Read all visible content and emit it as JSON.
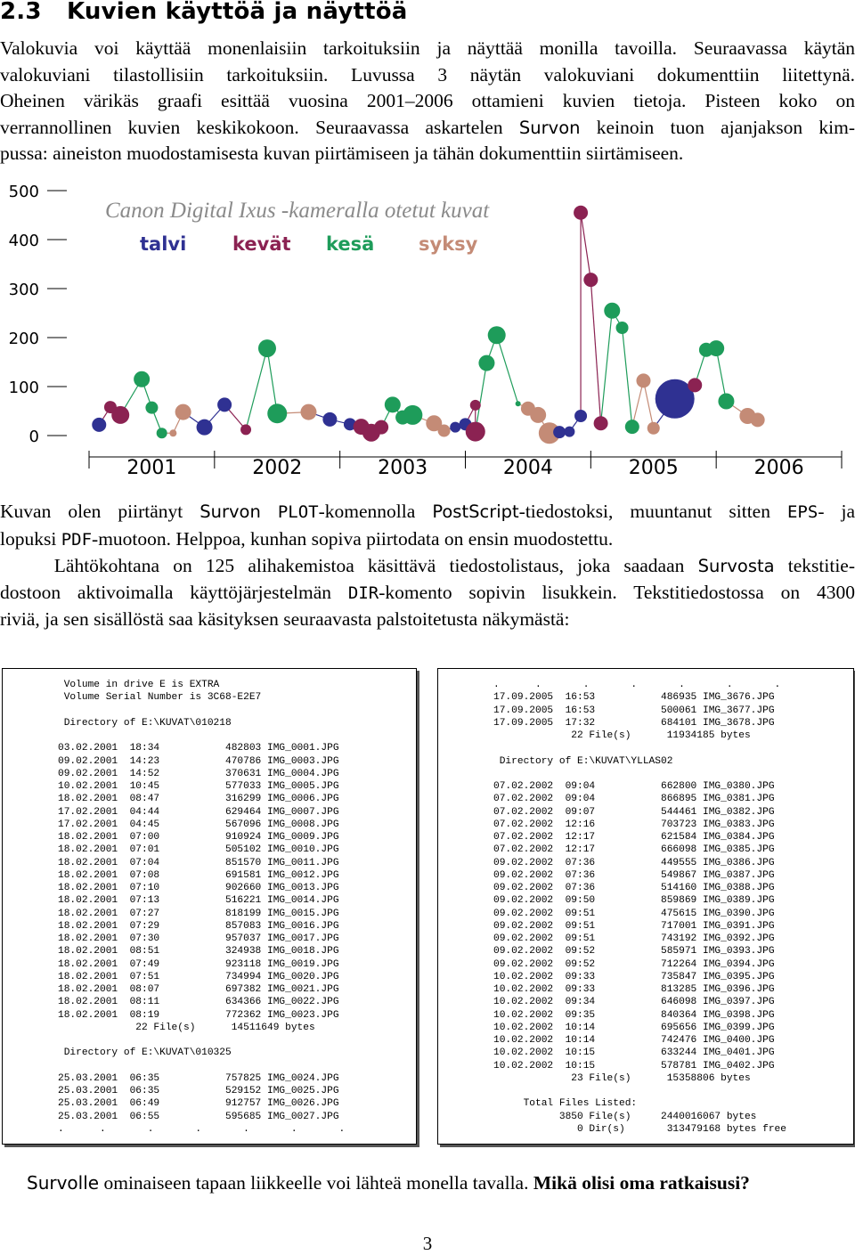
{
  "heading": {
    "number": "2.3",
    "title": "Kuvien käyttöä ja näyttöä"
  },
  "intro": {
    "lines": [
      "Valokuvia voi käyttää monenlaisiin tarkoituksiin ja näyttää monilla tavoilla. Seuraavassa käytän",
      "valokuviani tilastollisiin tarkoituksiin. Luvussa 3 näytän valokuviani dokumenttiin liitettynä.",
      "Oheinen värikäs graafi esittää vuosina 2001–2006 ottamieni kuvien tietoja. Pisteen koko on",
      "verrannollinen kuvien keskikokoon. Seuraavassa askartelen |Survon| keinoin tuon ajanjakson kim-",
      "pussa: aineiston muodostamisesta kuvan piirtämiseen ja tähän dokumenttiin siirtämiseen."
    ]
  },
  "chart_data": {
    "type": "scatter",
    "title": "Canon Digital Ixus -kameralla otetut kuvat",
    "xlabel": "",
    "ylabel": "",
    "ylim": [
      0,
      500
    ],
    "xlim": [
      2001,
      2007
    ],
    "yticks": [
      0,
      100,
      200,
      300,
      400,
      500
    ],
    "xticks": [
      "2001",
      "2002",
      "2003",
      "2004",
      "2005",
      "2006"
    ],
    "grid": false,
    "legend": "top-left",
    "series_note": "point size proportional to mean image size",
    "season_colors": {
      "talvi": "#2f3192",
      "kevät": "#8b2252",
      "kesä": "#1e9c5a",
      "syksy": "#c48b76"
    },
    "series": [
      {
        "name": "talvi",
        "color": "#2f3192"
      },
      {
        "name": "kevät",
        "color": "#8b2252"
      },
      {
        "name": "kesä",
        "color": "#1e9c5a"
      },
      {
        "name": "syksy",
        "color": "#c48b76"
      }
    ],
    "points": [
      {
        "x": 2001.08,
        "y": 22,
        "s": "talvi",
        "r": 8
      },
      {
        "x": 2001.17,
        "y": 58,
        "s": "kevät",
        "r": 7
      },
      {
        "x": 2001.25,
        "y": 42,
        "s": "kevät",
        "r": 10
      },
      {
        "x": 2001.42,
        "y": 115,
        "s": "kesä",
        "r": 9
      },
      {
        "x": 2001.5,
        "y": 57,
        "s": "kesä",
        "r": 7
      },
      {
        "x": 2001.58,
        "y": 5,
        "s": "kesä",
        "r": 6
      },
      {
        "x": 2001.67,
        "y": 5,
        "s": "syksy",
        "r": 4
      },
      {
        "x": 2001.75,
        "y": 48,
        "s": "syksy",
        "r": 9
      },
      {
        "x": 2001.92,
        "y": 17,
        "s": "talvi",
        "r": 9
      },
      {
        "x": 2002.08,
        "y": 63,
        "s": "talvi",
        "r": 8
      },
      {
        "x": 2002.25,
        "y": 12,
        "s": "kevät",
        "r": 6
      },
      {
        "x": 2002.42,
        "y": 178,
        "s": "kesä",
        "r": 10
      },
      {
        "x": 2002.5,
        "y": 45,
        "s": "kesä",
        "r": 11
      },
      {
        "x": 2002.75,
        "y": 48,
        "s": "syksy",
        "r": 9
      },
      {
        "x": 2002.92,
        "y": 33,
        "s": "talvi",
        "r": 8
      },
      {
        "x": 2003.08,
        "y": 23,
        "s": "talvi",
        "r": 7
      },
      {
        "x": 2003.17,
        "y": 18,
        "s": "kevät",
        "r": 9
      },
      {
        "x": 2003.25,
        "y": 6,
        "s": "kevät",
        "r": 10
      },
      {
        "x": 2003.33,
        "y": 17,
        "s": "kevät",
        "r": 8
      },
      {
        "x": 2003.42,
        "y": 63,
        "s": "kesä",
        "r": 9
      },
      {
        "x": 2003.5,
        "y": 37,
        "s": "kesä",
        "r": 8
      },
      {
        "x": 2003.58,
        "y": 42,
        "s": "kesä",
        "r": 11
      },
      {
        "x": 2003.75,
        "y": 25,
        "s": "syksy",
        "r": 9
      },
      {
        "x": 2003.83,
        "y": 10,
        "s": "syksy",
        "r": 7
      },
      {
        "x": 2003.92,
        "y": 17,
        "s": "talvi",
        "r": 6
      },
      {
        "x": 2004.0,
        "y": 23,
        "s": "talvi",
        "r": 7
      },
      {
        "x": 2004.08,
        "y": 62,
        "s": "kevät",
        "r": 6
      },
      {
        "x": 2004.08,
        "y": 8,
        "s": "kevät",
        "r": 11
      },
      {
        "x": 2004.17,
        "y": 148,
        "s": "kesä",
        "r": 9
      },
      {
        "x": 2004.25,
        "y": 205,
        "s": "kesä",
        "r": 10
      },
      {
        "x": 2004.42,
        "y": 65,
        "s": "kesä",
        "r": 3
      },
      {
        "x": 2004.5,
        "y": 55,
        "s": "syksy",
        "r": 8
      },
      {
        "x": 2004.58,
        "y": 42,
        "s": "syksy",
        "r": 9
      },
      {
        "x": 2004.67,
        "y": 5,
        "s": "syksy",
        "r": 12
      },
      {
        "x": 2004.75,
        "y": 7,
        "s": "talvi",
        "r": 7
      },
      {
        "x": 2004.83,
        "y": 8,
        "s": "talvi",
        "r": 6
      },
      {
        "x": 2004.92,
        "y": 40,
        "s": "talvi",
        "r": 7
      },
      {
        "x": 2004.92,
        "y": 455,
        "s": "kevät",
        "r": 8
      },
      {
        "x": 2005.0,
        "y": 318,
        "s": "kevät",
        "r": 8
      },
      {
        "x": 2005.08,
        "y": 25,
        "s": "kevät",
        "r": 8
      },
      {
        "x": 2005.17,
        "y": 255,
        "s": "kesä",
        "r": 9
      },
      {
        "x": 2005.25,
        "y": 220,
        "s": "kesä",
        "r": 7
      },
      {
        "x": 2005.33,
        "y": 18,
        "s": "kesä",
        "r": 8
      },
      {
        "x": 2005.42,
        "y": 112,
        "s": "syksy",
        "r": 8
      },
      {
        "x": 2005.5,
        "y": 15,
        "s": "syksy",
        "r": 7
      },
      {
        "x": 2005.67,
        "y": 75,
        "s": "talvi",
        "r": 22
      },
      {
        "x": 2005.83,
        "y": 103,
        "s": "kevät",
        "r": 8
      },
      {
        "x": 2005.92,
        "y": 175,
        "s": "kesä",
        "r": 8
      },
      {
        "x": 2006.0,
        "y": 178,
        "s": "kesä",
        "r": 9
      },
      {
        "x": 2006.08,
        "y": 70,
        "s": "kesä",
        "r": 9
      },
      {
        "x": 2006.25,
        "y": 40,
        "s": "syksy",
        "r": 9
      },
      {
        "x": 2006.33,
        "y": 32,
        "s": "syksy",
        "r": 8
      }
    ]
  },
  "after_chart": {
    "lines": [
      "Kuvan olen piirtänyt |Survon| @PLOT@-komennolla |PostScript|-tiedostoksi, muuntanut sitten @EPS@- ja",
      "lopuksi @PDF@-muotoon. Helppoa, kunhan sopiva piirtodata on ensin muodostettu.",
      "    Lähtökohtana on 125 alihakemistoa käsittävä tiedostolistaus, joka saadaan |Survosta| tekstitie-",
      "dostoon aktivoimalla käyttöjärjestelmän @DIR@-komento sopivin lisukkein. Tekstitiedostossa on 4300",
      "riviä, ja sen sisällöstä saa käsityksen seuraavasta palstoitetusta näkymästä:"
    ]
  },
  "listing_left": [
    " Volume in drive E is EXTRA",
    " Volume Serial Number is 3C68-E2E7",
    "",
    " Directory of E:\\KUVAT\\010218",
    "",
    "03.02.2001  18:34           482803 IMG_0001.JPG",
    "09.02.2001  14:23           470786 IMG_0003.JPG",
    "09.02.2001  14:52           370631 IMG_0004.JPG",
    "10.02.2001  10:45           577033 IMG_0005.JPG",
    "18.02.2001  08:47           316299 IMG_0006.JPG",
    "17.02.2001  04:44           629464 IMG_0007.JPG",
    "17.02.2001  04:45           567096 IMG_0008.JPG",
    "18.02.2001  07:00           910924 IMG_0009.JPG",
    "18.02.2001  07:01           505102 IMG_0010.JPG",
    "18.02.2001  07:04           851570 IMG_0011.JPG",
    "18.02.2001  07:08           691581 IMG_0012.JPG",
    "18.02.2001  07:10           902660 IMG_0013.JPG",
    "18.02.2001  07:13           516221 IMG_0014.JPG",
    "18.02.2001  07:27           818199 IMG_0015.JPG",
    "18.02.2001  07:29           857083 IMG_0016.JPG",
    "18.02.2001  07:30           957037 IMG_0017.JPG",
    "18.02.2001  08:51           324938 IMG_0018.JPG",
    "18.02.2001  07:49           923118 IMG_0019.JPG",
    "18.02.2001  07:51           734994 IMG_0020.JPG",
    "18.02.2001  08:07           697382 IMG_0021.JPG",
    "18.02.2001  08:11           634366 IMG_0022.JPG",
    "18.02.2001  08:19           772362 IMG_0023.JPG",
    "             22 File(s)      14511649 bytes",
    "",
    " Directory of E:\\KUVAT\\010325",
    "",
    "25.03.2001  06:35           757825 IMG_0024.JPG",
    "25.03.2001  06:35           529152 IMG_0025.JPG",
    "25.03.2001  06:49           912757 IMG_0026.JPG",
    "25.03.2001  06:55           595685 IMG_0027.JPG",
    ".      .       .       .       .       .       ."
  ],
  "listing_right": [
    ".      .       .       .       .       .       .",
    "17.09.2005  16:53           486935 IMG_3676.JPG",
    "17.09.2005  16:53           500061 IMG_3677.JPG",
    "17.09.2005  17:32           684101 IMG_3678.JPG",
    "             22 File(s)      11934185 bytes",
    "",
    " Directory of E:\\KUVAT\\YLLAS02",
    "",
    "07.02.2002  09:04           662800 IMG_0380.JPG",
    "07.02.2002  09:04           866895 IMG_0381.JPG",
    "07.02.2002  09:07           544461 IMG_0382.JPG",
    "07.02.2002  12:16           703723 IMG_0383.JPG",
    "07.02.2002  12:17           621584 IMG_0384.JPG",
    "07.02.2002  12:17           666098 IMG_0385.JPG",
    "09.02.2002  07:36           449555 IMG_0386.JPG",
    "09.02.2002  07:36           549867 IMG_0387.JPG",
    "09.02.2002  07:36           514160 IMG_0388.JPG",
    "09.02.2002  09:50           859869 IMG_0389.JPG",
    "09.02.2002  09:51           475615 IMG_0390.JPG",
    "09.02.2002  09:51           717001 IMG_0391.JPG",
    "09.02.2002  09:51           743192 IMG_0392.JPG",
    "09.02.2002  09:52           585971 IMG_0393.JPG",
    "09.02.2002  09:52           712264 IMG_0394.JPG",
    "10.02.2002  09:33           735847 IMG_0395.JPG",
    "10.02.2002  09:33           813285 IMG_0396.JPG",
    "10.02.2002  09:34           646098 IMG_0397.JPG",
    "10.02.2002  09:35           840364 IMG_0398.JPG",
    "10.02.2002  10:14           695656 IMG_0399.JPG",
    "10.02.2002  10:14           742476 IMG_0400.JPG",
    "10.02.2002  10:15           633244 IMG_0401.JPG",
    "10.02.2002  10:15           578781 IMG_0402.JPG",
    "             23 File(s)      15358806 bytes",
    "",
    "     Total Files Listed:",
    "           3850 File(s)     2440016067 bytes",
    "              0 Dir(s)       313479168 bytes free"
  ],
  "closing": {
    "survo_word": "Survolle",
    "text": " ominaiseen tapaan liikkeelle voi lähteä monella tavalla. ",
    "question": "Mikä olisi oma ratkaisusi?"
  },
  "page_number": "3"
}
